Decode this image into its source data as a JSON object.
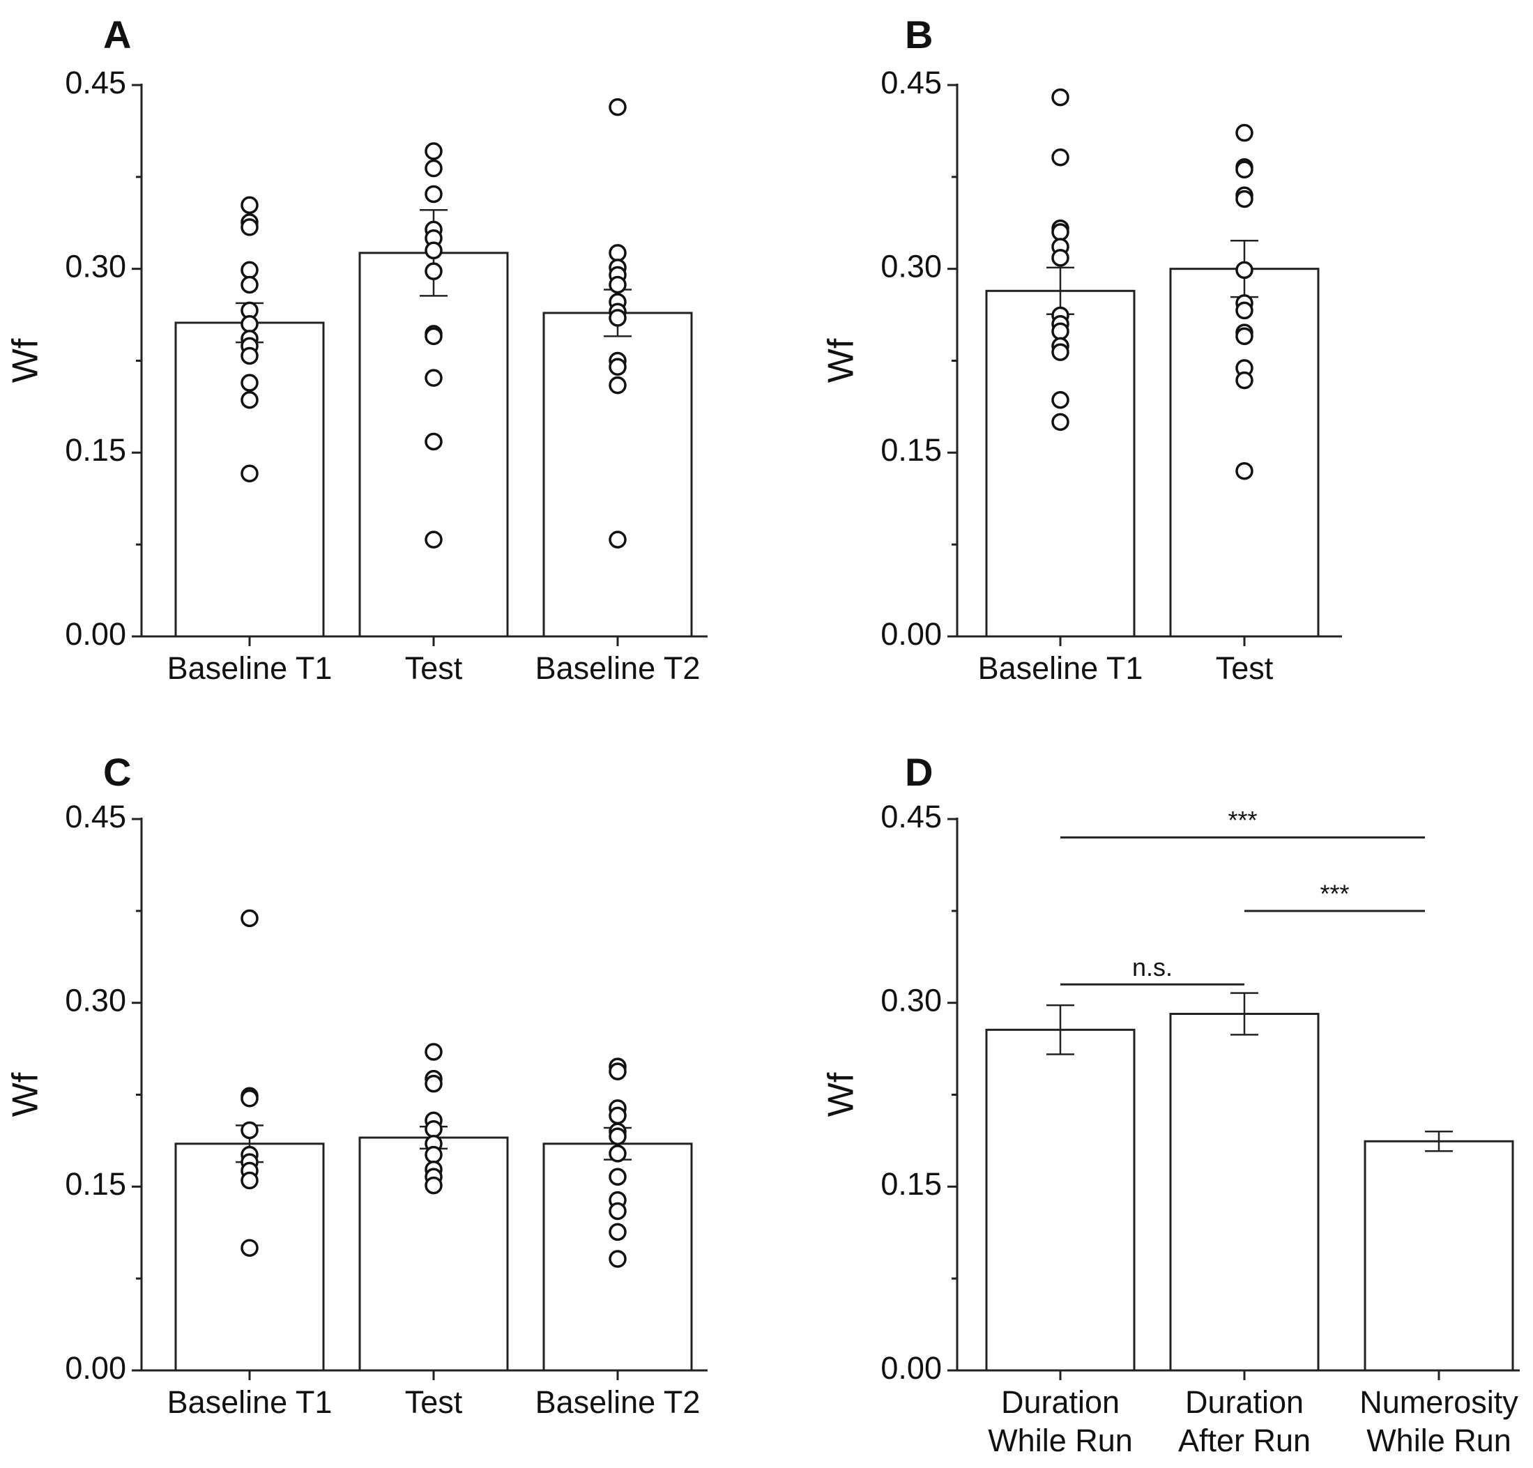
{
  "chart_data": [
    {
      "panel": "A",
      "type": "bar",
      "ylabel": "Wf",
      "ylim": [
        0,
        0.45
      ],
      "yticks": [
        "0.00",
        "0.15",
        "0.30",
        "0.45"
      ],
      "categories": [
        "Baseline T1",
        "Test",
        "Baseline T2"
      ],
      "values": [
        0.256,
        0.313,
        0.264
      ],
      "errors": [
        0.016,
        0.035,
        0.019
      ],
      "points": [
        [
          0.352,
          0.338,
          0.334,
          0.299,
          0.287,
          0.266,
          0.255,
          0.243,
          0.237,
          0.229,
          0.207,
          0.193,
          0.133
        ],
        [
          0.396,
          0.382,
          0.361,
          0.332,
          0.325,
          0.315,
          0.298,
          0.247,
          0.245,
          0.211,
          0.159,
          0.079
        ],
        [
          0.432,
          0.313,
          0.301,
          0.295,
          0.287,
          0.273,
          0.265,
          0.26,
          0.225,
          0.22,
          0.205,
          0.079
        ]
      ]
    },
    {
      "panel": "B",
      "type": "bar",
      "ylabel": "Wf",
      "ylim": [
        0,
        0.45
      ],
      "yticks": [
        "0.00",
        "0.15",
        "0.30",
        "0.45"
      ],
      "categories": [
        "Baseline T1",
        "Test"
      ],
      "values": [
        0.282,
        0.3
      ],
      "errors": [
        0.019,
        0.023
      ],
      "points": [
        [
          0.44,
          0.391,
          0.333,
          0.33,
          0.318,
          0.309,
          0.262,
          0.255,
          0.249,
          0.237,
          0.232,
          0.193,
          0.175
        ],
        [
          0.411,
          0.383,
          0.381,
          0.36,
          0.357,
          0.299,
          0.272,
          0.266,
          0.248,
          0.245,
          0.219,
          0.209,
          0.135
        ]
      ]
    },
    {
      "panel": "C",
      "type": "bar",
      "ylabel": "Wf",
      "ylim": [
        0,
        0.45
      ],
      "yticks": [
        "0.00",
        "0.15",
        "0.30",
        "0.45"
      ],
      "categories": [
        "Baseline T1",
        "Test",
        "Baseline T2"
      ],
      "values": [
        0.185,
        0.19,
        0.185
      ],
      "errors": [
        0.015,
        0.009,
        0.013
      ],
      "points": [
        [
          0.369,
          0.224,
          0.222,
          0.196,
          0.176,
          0.17,
          0.163,
          0.155,
          0.1
        ],
        [
          0.26,
          0.238,
          0.234,
          0.204,
          0.197,
          0.185,
          0.176,
          0.164,
          0.158,
          0.151
        ],
        [
          0.248,
          0.244,
          0.214,
          0.208,
          0.195,
          0.191,
          0.177,
          0.158,
          0.139,
          0.13,
          0.113,
          0.091
        ]
      ]
    },
    {
      "panel": "D",
      "type": "bar",
      "ylabel": "Wf",
      "ylim": [
        0,
        0.45
      ],
      "yticks": [
        "0.00",
        "0.15",
        "0.30",
        "0.45"
      ],
      "categories": [
        [
          "Duration",
          "While Run"
        ],
        [
          "Duration",
          "After Run"
        ],
        [
          "Numerosity",
          "While Run"
        ]
      ],
      "values": [
        0.278,
        0.291,
        0.187
      ],
      "errors": [
        0.02,
        0.017,
        0.008
      ],
      "significance": [
        {
          "from": 0,
          "to": 1,
          "y": 0.315,
          "label": "n.s."
        },
        {
          "from": 1,
          "to": 2,
          "y": 0.375,
          "label": "***"
        },
        {
          "from": 0,
          "to": 2,
          "y": 0.435,
          "label": "***"
        }
      ]
    }
  ]
}
